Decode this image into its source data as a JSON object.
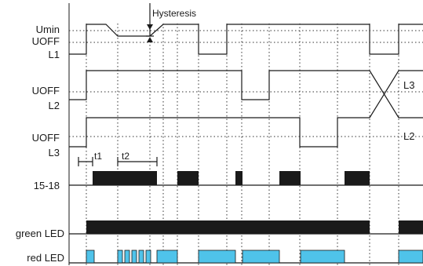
{
  "labels": {
    "umin": "Umin",
    "uoff_1": "UOFF",
    "l1": "L1",
    "uoff_2": "UOFF",
    "l2": "L2",
    "uoff_3": "UOFF",
    "l3": "L3",
    "relay": "15-18",
    "green_led": "green LED",
    "red_led": "red LED",
    "hysteresis": "Hysteresis",
    "t1": "t1",
    "t2": "t2",
    "swap_l3": "L3",
    "swap_l2": "L2"
  },
  "colors": {
    "signal": "#1a1a1a",
    "relay_fill": "#1a1a1a",
    "green_led_fill": "#1a1a1a",
    "red_led_fill": "#4fc3ea"
  }
}
